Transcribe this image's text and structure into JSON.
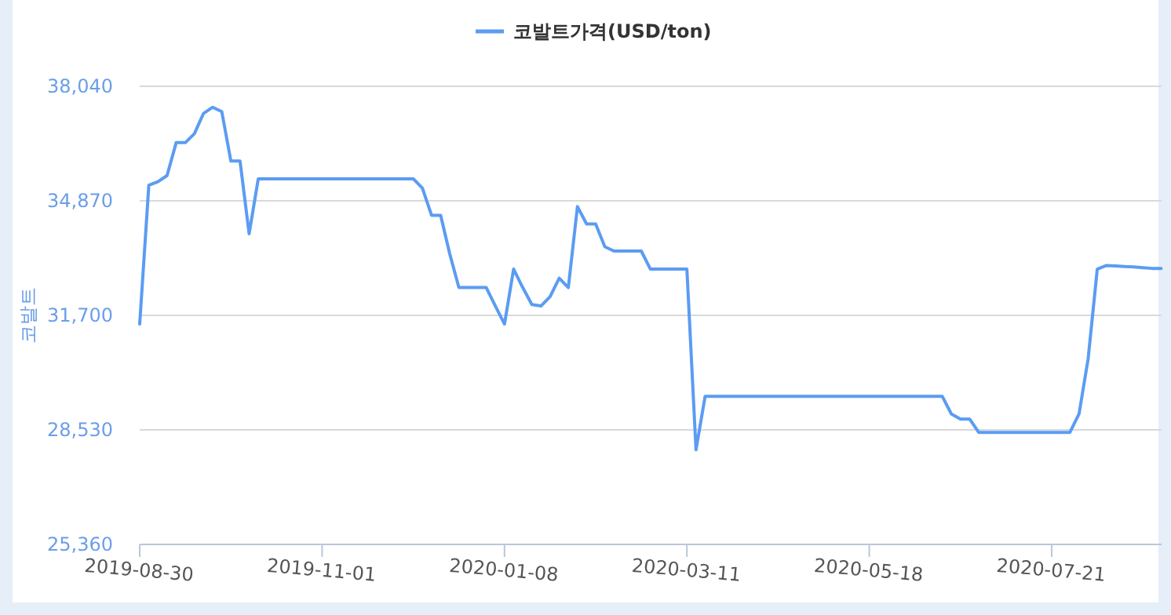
{
  "chart_data": {
    "type": "line",
    "ylabel": "코발트",
    "legend": "top",
    "grid": "y",
    "marker": "none",
    "line_style": "solid",
    "categories": [
      "2019-08-30",
      null,
      null,
      null,
      null,
      null,
      null,
      null,
      null,
      null,
      null,
      null,
      null,
      null,
      null,
      null,
      null,
      null,
      null,
      null,
      "2019-11-01",
      null,
      null,
      null,
      null,
      null,
      null,
      null,
      null,
      null,
      null,
      null,
      null,
      null,
      null,
      null,
      null,
      null,
      null,
      null,
      "2020-01-08",
      null,
      null,
      null,
      null,
      null,
      null,
      null,
      null,
      null,
      null,
      null,
      null,
      null,
      null,
      null,
      null,
      null,
      null,
      null,
      "2020-03-11",
      null,
      null,
      null,
      null,
      null,
      null,
      null,
      null,
      null,
      null,
      null,
      null,
      null,
      null,
      null,
      null,
      null,
      null,
      null,
      "2020-05-18",
      null,
      null,
      null,
      null,
      null,
      null,
      null,
      null,
      null,
      null,
      null,
      null,
      null,
      null,
      null,
      null,
      null,
      null,
      null,
      "2020-07-21",
      null,
      null,
      null,
      null,
      null,
      null,
      null,
      null,
      null,
      null,
      null,
      null
    ],
    "ylim": [
      25360,
      38040
    ],
    "yticks": [
      {
        "value": 25360,
        "label": "25,360"
      },
      {
        "value": 28530,
        "label": "28,530"
      },
      {
        "value": 31700,
        "label": "31,700"
      },
      {
        "value": 34870,
        "label": "34,870"
      },
      {
        "value": 38040,
        "label": "38,040"
      }
    ],
    "series": [
      {
        "name": "코발트가격(USD/ton)",
        "color": "#5b9cf2",
        "values": [
          31460,
          35300,
          35400,
          35570,
          36480,
          36480,
          36730,
          37290,
          37460,
          37340,
          35970,
          35970,
          33960,
          35480,
          35480,
          35480,
          35480,
          35480,
          35480,
          35480,
          35480,
          35480,
          35480,
          35480,
          35480,
          35480,
          35480,
          35480,
          35480,
          35480,
          35480,
          35220,
          34470,
          34470,
          33400,
          32470,
          32470,
          32470,
          32470,
          31960,
          31460,
          32980,
          32470,
          32000,
          31960,
          32220,
          32730,
          32470,
          34710,
          34230,
          34230,
          33600,
          33480,
          33480,
          33480,
          33480,
          32980,
          32980,
          32980,
          32980,
          32980,
          27980,
          29460,
          29460,
          29460,
          29460,
          29460,
          29460,
          29460,
          29460,
          29460,
          29460,
          29460,
          29460,
          29460,
          29460,
          29460,
          29460,
          29460,
          29460,
          29460,
          29460,
          29460,
          29460,
          29460,
          29460,
          29460,
          29460,
          29460,
          28970,
          28830,
          28830,
          28460,
          28460,
          28460,
          28460,
          28460,
          28460,
          28460,
          28460,
          28460,
          28460,
          28460,
          28970,
          30500,
          32980,
          33080,
          33070,
          33050,
          33040,
          33020,
          33000,
          33000
        ]
      }
    ]
  }
}
